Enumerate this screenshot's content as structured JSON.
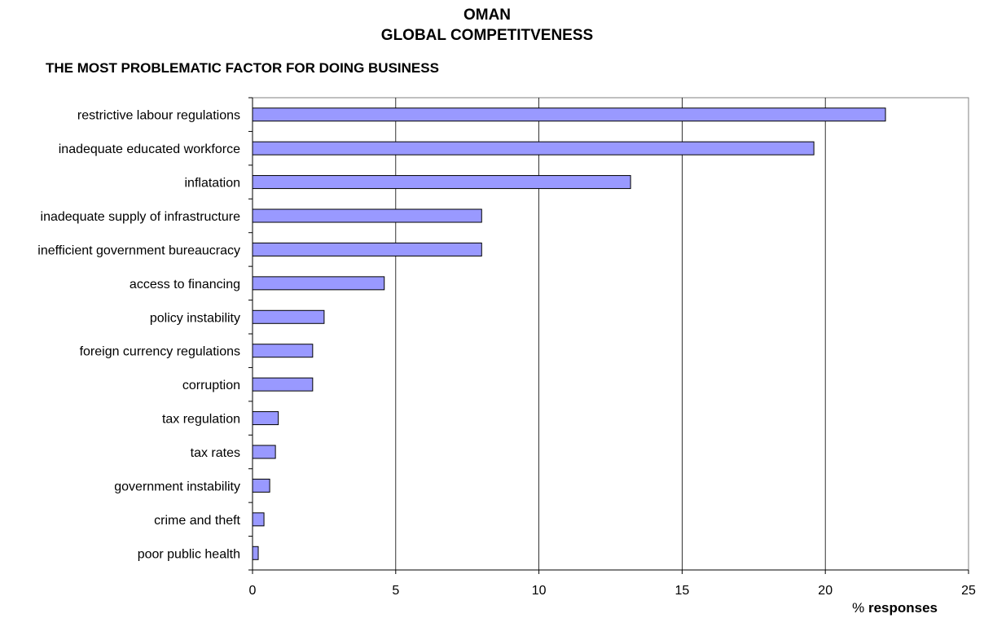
{
  "title_line1": "OMAN",
  "title_line2": "GLOBAL COMPETITVENESS",
  "chart_data": {
    "type": "bar",
    "orientation": "horizontal",
    "subtitle": "THE MOST PROBLEMATIC FACTOR FOR DOING BUSINESS",
    "xlabel_prefix": "%",
    "xlabel_main": "responses",
    "xlim": [
      0,
      25
    ],
    "xticks": [
      "0",
      "5",
      "10",
      "15",
      "20",
      "25"
    ],
    "grid": "vertical",
    "bar_color": "#9999ff",
    "categories": [
      "restrictive labour regulations",
      "inadequate educated workforce",
      "inflatation",
      "inadequate supply of infrastructure",
      "inefficient government bureaucracy",
      "access to financing",
      "policy instability",
      "foreign currency regulations",
      "corruption",
      "tax regulation",
      "tax rates",
      "government instability",
      "crime and theft",
      "poor public health"
    ],
    "values": [
      22.1,
      19.6,
      13.2,
      8.0,
      8.0,
      4.6,
      2.5,
      2.1,
      2.1,
      0.9,
      0.8,
      0.6,
      0.4,
      0.2
    ]
  }
}
